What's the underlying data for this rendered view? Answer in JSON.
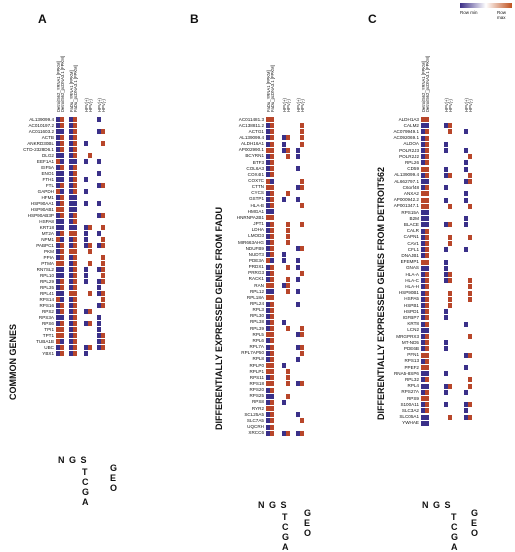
{
  "colors": {
    "low": "#3a3089",
    "high": "#b8462a",
    "mid": "#f4e4e8"
  },
  "legend": {
    "min_label": "Row min",
    "max_label": "Row max"
  },
  "panels": [
    {
      "letter": "A",
      "title": "COMMON GENES",
      "columns": [
        "Detroit562_YRNA1 [FPKM]",
        "Detroit562_pcDNA3.1 [FPKM]",
        "FaDu_YRNA1 [FPKM]",
        "FaDu_pcDNA3.1 [FPKM]",
        "HPV(+)",
        "HPV(-)",
        "HPV(+)",
        "HPV(-)"
      ],
      "groups": [
        "N G S",
        "T C G A",
        "G E O"
      ],
      "genes": [
        "AL139099.4",
        "AC010197.2",
        "AC011603.2",
        "ACTB",
        "ANKRD30BL",
        "CTD-2328D6.1",
        "DLG2",
        "EEF1A1",
        "EIF5A",
        "ENO1",
        "FTH1",
        "FTL",
        "GAPDH",
        "HFM1",
        "HSP90AA1",
        "HSP90AB1",
        "HSP90AB3P",
        "HSPA8",
        "KRT18",
        "MT2A",
        "NPM1",
        "PABPC1",
        "PKM",
        "PPIA",
        "PTMA",
        "RN7SL2",
        "RPL10",
        "RPL29",
        "RPL35",
        "RPL41",
        "RPS14",
        "RPS16",
        "RPS2",
        "RPS3A",
        "RPS6",
        "TPI1",
        "TPT1",
        "TUBA1B",
        "UBC",
        "YBX1"
      ]
    },
    {
      "letter": "B",
      "title": "DIFFERENTIALLY EXPRESSED GENES FROM FADU",
      "columns": [
        "FaDu_YRNA1 [FPKM]",
        "FaDu_pcDNA3.1 [FPKM]",
        "HPV(+)",
        "HPV(-)",
        "HPV(+)",
        "HPV(-)"
      ],
      "groups": [
        "N G S",
        "T C G A",
        "G E O"
      ],
      "genes": [
        "AC011481.3",
        "AC138811.2",
        "ACTG1",
        "AL139099.4",
        "ALDH16A1",
        "AP002990.1",
        "BCYRN1",
        "BTF3",
        "COL6A3",
        "COX4I1",
        "COX7C",
        "CTTN",
        "CYCS",
        "GSTP1",
        "HLA-B",
        "HMGA1",
        "HNRNPA2B1",
        "JPT1",
        "LDHA",
        "LMOD3",
        "MIR663AHG",
        "NDUFB9",
        "NUDT3",
        "PDE3A",
        "PRDX1",
        "PRRG3",
        "RACK1",
        "RAN",
        "RPL12",
        "RPL18A",
        "RPL24",
        "RPL3",
        "RPL30",
        "RPL38",
        "RPL39",
        "RPL5",
        "RPL6",
        "RPL7A",
        "RPL7AP50",
        "RPL8",
        "RPLP0",
        "RPLP1",
        "RPS11",
        "RPS18",
        "RPS20",
        "RPS25",
        "RPS8",
        "RYR2",
        "SCL25A5",
        "SLC7A5",
        "UQCRH",
        "XRCC6"
      ]
    },
    {
      "letter": "C",
      "title": "DIFFERENTIALLY EXPRESSED GENES FROM DETROIT562",
      "columns": [
        "Detroit562_YRNA1 [FPKM]",
        "Detroit562_pcDNA3.1 [FPKM]",
        "HPV(+)",
        "HPV(-)",
        "HPV(+)",
        "HPV(-)"
      ],
      "groups": [
        "N G S",
        "T C G A",
        "G E O"
      ],
      "genes": [
        "ALDH1A3",
        "CALM2",
        "AC079949.1",
        "AC092069.1",
        "ALDOA",
        "POLR2J3",
        "POLR2J2",
        "RPL26",
        "CD59",
        "AL139099.4",
        "AL662797.1",
        "C6orf48",
        "ANXA2",
        "AP000942.2",
        "AP001347.1",
        "RPS15A",
        "B2M",
        "BLACE",
        "CALR",
        "CAPN1",
        "CAV1",
        "CFL1",
        "DNAJB1",
        "EFEMP1",
        "GNAS",
        "HLA-A",
        "HLA-C",
        "HLA-H",
        "HSP90B1",
        "HSPA5",
        "HSPB1",
        "HSPD1",
        "IGFBP7",
        "KRT8",
        "LCN2",
        "MRGPRX3",
        "MT-ND5",
        "PDE6B",
        "PFN1",
        "RPS13",
        "PPEF2",
        "RNA5-8SP6",
        "RPL32",
        "RPL4",
        "RPS27A",
        "RPS9",
        "S100A11",
        "SLC3A2",
        "SLC05A1",
        "YWHAE"
      ]
    }
  ]
}
